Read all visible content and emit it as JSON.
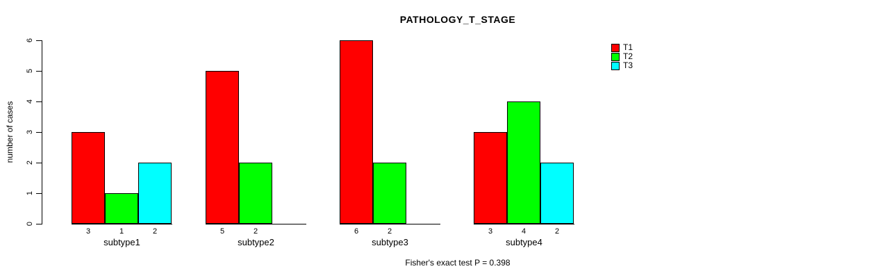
{
  "title": "PATHOLOGY_T_STAGE",
  "footer": "Fisher's exact test P = 0.398",
  "chart_data": {
    "type": "bar",
    "grouped": true,
    "title": "PATHOLOGY_T_STAGE",
    "categories": [
      "subtype1",
      "subtype2",
      "subtype3",
      "subtype4"
    ],
    "series": [
      {
        "name": "T1",
        "color": "#FF0000",
        "values": [
          3,
          5,
          6,
          3
        ]
      },
      {
        "name": "T2",
        "color": "#00FF00",
        "values": [
          1,
          2,
          2,
          4
        ]
      },
      {
        "name": "T3",
        "color": "#00FFFF",
        "values": [
          2,
          0,
          0,
          2
        ]
      }
    ],
    "xlabel": "",
    "ylabel": "number of cases",
    "ylim": [
      0,
      6
    ],
    "yticks": [
      0,
      1,
      2,
      3,
      4,
      5,
      6
    ],
    "grid": false,
    "bar_value_labels": "shown under each bar, omitted for zero",
    "legend_position": "top-right",
    "annotation": "Fisher's exact test P = 0.398"
  }
}
